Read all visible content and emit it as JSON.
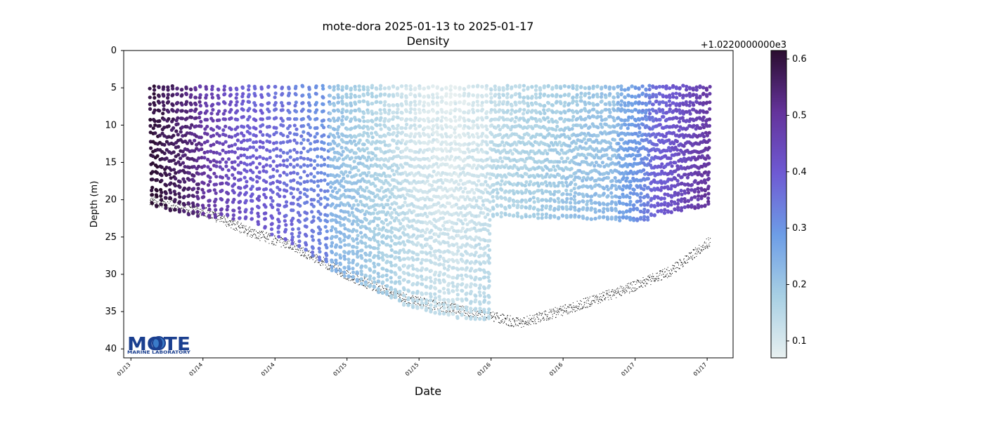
{
  "chart_data": {
    "type": "scatter",
    "title": "mote-dora 2025-01-13 to 2025-01-17",
    "subtitle": "Density",
    "xlabel": "Date",
    "ylabel": "Depth (m)",
    "x_tick_labels": [
      "01/13",
      "01/14",
      "01/14",
      "01/15",
      "01/15",
      "01/16",
      "01/16",
      "01/17",
      "01/17"
    ],
    "x_ticks_days": [
      0,
      0.5,
      1,
      1.5,
      2,
      2.5,
      3,
      3.5,
      4
    ],
    "xlim_days": [
      -0.05,
      4.18
    ],
    "y_ticks": [
      0,
      5,
      10,
      15,
      20,
      25,
      30,
      35,
      40
    ],
    "ylim": [
      41.2,
      0
    ],
    "y_inverted": true,
    "grid": false,
    "colorbar": {
      "offset_label": "+1.0220000000e3",
      "ticks": [
        0.1,
        0.2,
        0.3,
        0.4,
        0.5,
        0.6
      ],
      "range": [
        0.07,
        0.615
      ],
      "colormap": [
        "#e8f0f0",
        "#a8d0e4",
        "#6d9de6",
        "#6e5ad3",
        "#64339b",
        "#2a0d2f"
      ]
    },
    "series": [
      {
        "kind": "density_profiles",
        "note": "yo profiles, color = density anomaly",
        "profile_top_depth_m": 5,
        "segments": [
          {
            "day_start": 0.13,
            "day_end": 0.48,
            "bottom_start": 20.5,
            "bottom_end": 22.0,
            "density_start": 0.61,
            "density_end": 0.52,
            "profiles": 22
          },
          {
            "day_start": 0.48,
            "day_end": 0.86,
            "bottom_start": 22.0,
            "bottom_end": 22.5,
            "density_start": 0.5,
            "density_end": 0.38,
            "profiles": 18
          },
          {
            "day_start": 0.86,
            "day_end": 1.38,
            "bottom_start": 23.0,
            "bottom_end": 28.5,
            "density_start": 0.4,
            "density_end": 0.3,
            "profiles": 22
          },
          {
            "day_start": 1.38,
            "day_end": 1.88,
            "bottom_start": 29.0,
            "bottom_end": 33.5,
            "density_start": 0.22,
            "density_end": 0.13,
            "profiles": 34
          },
          {
            "day_start": 1.88,
            "day_end": 2.22,
            "bottom_start": 34.0,
            "bottom_end": 35.5,
            "density_start": 0.12,
            "density_end": 0.09,
            "profiles": 22
          },
          {
            "day_start": 2.22,
            "day_end": 2.5,
            "bottom_start": 35.5,
            "bottom_end": 36.0,
            "density_start": 0.09,
            "density_end": 0.12,
            "profiles": 18
          },
          {
            "day_start": 2.5,
            "day_end": 3.38,
            "bottom_start": 22.0,
            "bottom_end": 22.5,
            "density_start": 0.14,
            "density_end": 0.22,
            "profiles": 62
          },
          {
            "day_start": 3.38,
            "day_end": 3.6,
            "bottom_start": 22.5,
            "bottom_end": 22.5,
            "density_start": 0.25,
            "density_end": 0.33,
            "profiles": 18
          },
          {
            "day_start": 3.6,
            "day_end": 4.02,
            "bottom_start": 22.0,
            "bottom_end": 20.5,
            "density_start": 0.36,
            "density_end": 0.5,
            "profiles": 36
          }
        ]
      },
      {
        "kind": "bathymetry_points",
        "color": "#000000",
        "bottom_depth_m": [
          {
            "day": 0.13,
            "depth": 20.0
          },
          {
            "day": 0.5,
            "depth": 21.5
          },
          {
            "day": 0.85,
            "depth": 24.5
          },
          {
            "day": 1.1,
            "depth": 26.0
          },
          {
            "day": 1.55,
            "depth": 30.5
          },
          {
            "day": 1.95,
            "depth": 33.5
          },
          {
            "day": 2.35,
            "depth": 35.0
          },
          {
            "day": 2.7,
            "depth": 36.5
          },
          {
            "day": 3.05,
            "depth": 34.5
          },
          {
            "day": 3.5,
            "depth": 31.5
          },
          {
            "day": 3.75,
            "depth": 29.5
          },
          {
            "day": 4.02,
            "depth": 25.5
          }
        ]
      }
    ]
  },
  "logo": {
    "main_text": "MOTE",
    "sub_text": "MARINE LABORATORY"
  }
}
